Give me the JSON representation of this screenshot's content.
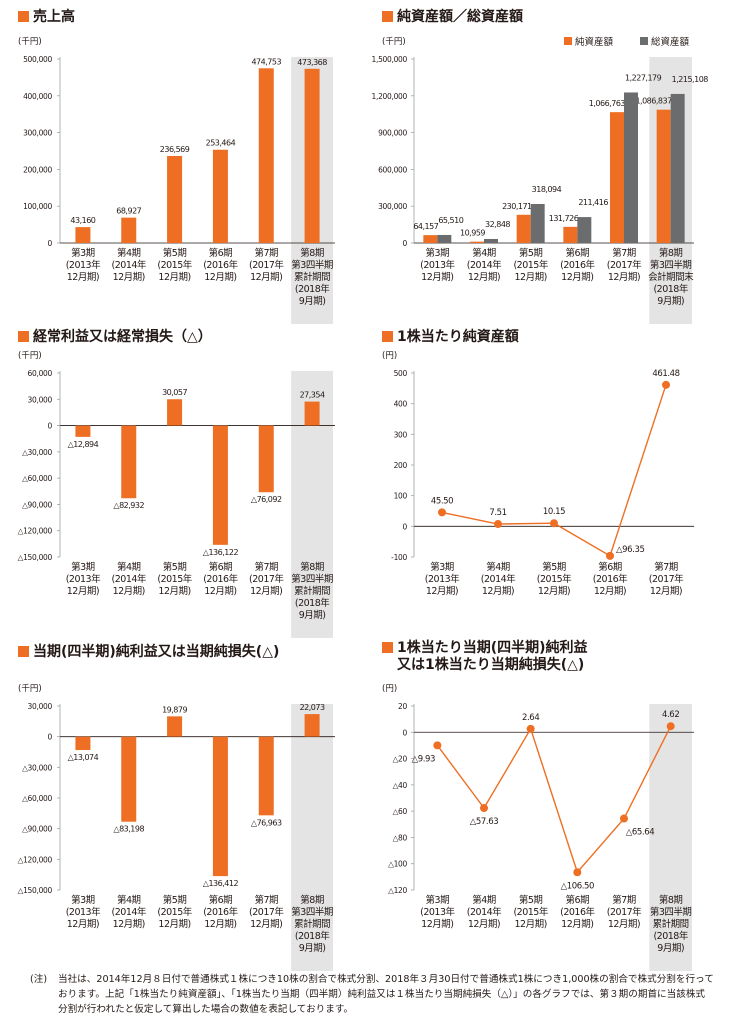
{
  "colors": {
    "orange": "#ee6f23",
    "gray": "#6b6c6e",
    "shade": "#e4e4e4",
    "axis": "#231815"
  },
  "panels": [
    {
      "title_lines": [
        "売上高"
      ],
      "chart_data": {
        "type": "bar",
        "unit": "(千円)",
        "ylim": [
          0,
          500000
        ],
        "yticks": [
          0,
          100000,
          200000,
          300000,
          400000,
          500000
        ],
        "ytick_labels": [
          "0",
          "100,000",
          "200,000",
          "300,000",
          "400,000",
          "500,000"
        ],
        "categories": [
          [
            "第3期",
            "(2013年",
            "12月期)"
          ],
          [
            "第4期",
            "(2014年",
            "12月期)"
          ],
          [
            "第5期",
            "(2015年",
            "12月期)"
          ],
          [
            "第6期",
            "(2016年",
            "12月期)"
          ],
          [
            "第7期",
            "(2017年",
            "12月期)"
          ],
          [
            "第8期",
            "第3四半期",
            "累計期間",
            "(2018年",
            "9月期)"
          ]
        ],
        "highlight_last": true,
        "series": [
          {
            "name": "売上高",
            "color": "#ee6f23",
            "values": [
              43160,
              68927,
              236569,
              253464,
              474753,
              473368
            ],
            "labels": [
              "43,160",
              "68,927",
              "236,569",
              "253,464",
              "474,753",
              "473,368"
            ]
          }
        ]
      }
    },
    {
      "title_lines": [
        "純資産額／総資産額"
      ],
      "chart_data": {
        "type": "bar",
        "unit": "(千円)",
        "ylim": [
          0,
          1500000
        ],
        "yticks": [
          0,
          300000,
          600000,
          900000,
          1200000,
          1500000
        ],
        "ytick_labels": [
          "0",
          "300,000",
          "600,000",
          "900,000",
          "1,200,000",
          "1,500,000"
        ],
        "legend": {
          "position": "top-right",
          "entries": [
            "純資産額",
            "総資産額"
          ]
        },
        "categories": [
          [
            "第3期",
            "(2013年",
            "12月期)"
          ],
          [
            "第4期",
            "(2014年",
            "12月期)"
          ],
          [
            "第5期",
            "(2015年",
            "12月期)"
          ],
          [
            "第6期",
            "(2016年",
            "12月期)"
          ],
          [
            "第7期",
            "(2017年",
            "12月期)"
          ],
          [
            "第8期",
            "第3四半期",
            "会計期間末",
            "(2018年",
            "9月期)"
          ]
        ],
        "highlight_last": true,
        "series": [
          {
            "name": "純資産額",
            "color": "#ee6f23",
            "values": [
              64157,
              10959,
              230171,
              131726,
              1066763,
              1086837
            ],
            "labels": [
              "64,157",
              "10,959",
              "230,171",
              "131,726",
              "1,066,763",
              "1,086,837"
            ]
          },
          {
            "name": "総資産額",
            "color": "#6b6c6e",
            "values": [
              65510,
              32848,
              318094,
              211416,
              1227179,
              1215108
            ],
            "labels": [
              "65,510",
              "32,848",
              "318,094",
              "211,416",
              "1,227,179",
              "1,215,108"
            ]
          }
        ]
      }
    },
    {
      "title_lines": [
        "経常利益又は経常損失（△）"
      ],
      "chart_data": {
        "type": "bar",
        "unit": "(千円)",
        "ylim": [
          -150000,
          60000
        ],
        "yticks": [
          60000,
          30000,
          0,
          -30000,
          -60000,
          -90000,
          -120000,
          -150000
        ],
        "ytick_labels": [
          "60,000",
          "30,000",
          "0",
          "△30,000",
          "△60,000",
          "△90,000",
          "△120,000",
          "△150,000"
        ],
        "categories": [
          [
            "第3期",
            "(2013年",
            "12月期)"
          ],
          [
            "第4期",
            "(2014年",
            "12月期)"
          ],
          [
            "第5期",
            "(2015年",
            "12月期)"
          ],
          [
            "第6期",
            "(2016年",
            "12月期)"
          ],
          [
            "第7期",
            "(2017年",
            "12月期)"
          ],
          [
            "第8期",
            "第3四半期",
            "累計期間",
            "(2018年",
            "9月期)"
          ]
        ],
        "highlight_last": true,
        "series": [
          {
            "name": "経常利益",
            "color": "#ee6f23",
            "values": [
              -12894,
              -82932,
              30057,
              -136122,
              -76092,
              27354
            ],
            "labels": [
              "△12,894",
              "△82,932",
              "30,057",
              "△136,122",
              "△76,092",
              "27,354"
            ]
          }
        ]
      }
    },
    {
      "title_lines": [
        "1株当たり純資産額"
      ],
      "chart_data": {
        "type": "line",
        "unit": "(円)",
        "ylim": [
          -100,
          500
        ],
        "yticks": [
          500,
          400,
          300,
          200,
          100,
          0,
          -100
        ],
        "ytick_labels": [
          "500",
          "400",
          "300",
          "200",
          "100",
          "0",
          "-100"
        ],
        "categories": [
          [
            "第3期",
            "(2013年",
            "12月期)"
          ],
          [
            "第4期",
            "(2014年",
            "12月期)"
          ],
          [
            "第5期",
            "(2015年",
            "12月期)"
          ],
          [
            "第6期",
            "(2016年",
            "12月期)"
          ],
          [
            "第7期",
            "(2017年",
            "12月期)"
          ]
        ],
        "highlight_last": false,
        "series": [
          {
            "name": "1株当たり純資産額",
            "color": "#ee6f23",
            "values": [
              45.5,
              7.51,
              10.15,
              -96.35,
              461.48
            ],
            "labels": [
              "45.50",
              "7.51",
              "10.15",
              "△96.35",
              "461.48"
            ]
          }
        ]
      }
    },
    {
      "title_lines": [
        "当期(四半期)純利益又は当期純損失(△)"
      ],
      "chart_data": {
        "type": "bar",
        "unit": "(千円)",
        "ylim": [
          -150000,
          30000
        ],
        "yticks": [
          30000,
          0,
          -30000,
          -60000,
          -90000,
          -120000,
          -150000
        ],
        "ytick_labels": [
          "30,000",
          "0",
          "△30,000",
          "△60,000",
          "△90,000",
          "△120,000",
          "△150,000"
        ],
        "categories": [
          [
            "第3期",
            "(2013年",
            "12月期)"
          ],
          [
            "第4期",
            "(2014年",
            "12月期)"
          ],
          [
            "第5期",
            "(2015年",
            "12月期)"
          ],
          [
            "第6期",
            "(2016年",
            "12月期)"
          ],
          [
            "第7期",
            "(2017年",
            "12月期)"
          ],
          [
            "第8期",
            "第3四半期",
            "累計期間",
            "(2018年",
            "9月期)"
          ]
        ],
        "highlight_last": true,
        "series": [
          {
            "name": "当期純利益",
            "color": "#ee6f23",
            "values": [
              -13074,
              -83198,
              19879,
              -136412,
              -76963,
              22073
            ],
            "labels": [
              "△13,074",
              "△83,198",
              "19,879",
              "△136,412",
              "△76,963",
              "22,073"
            ]
          }
        ]
      }
    },
    {
      "title_lines": [
        "1株当たり当期(四半期)純利益",
        "又は1株当たり当期純損失(△)"
      ],
      "chart_data": {
        "type": "line",
        "unit": "(円)",
        "ylim": [
          -120,
          20
        ],
        "yticks": [
          20,
          0,
          -20,
          -40,
          -60,
          -80,
          -100,
          -120
        ],
        "ytick_labels": [
          "20",
          "0",
          "△20",
          "△40",
          "△60",
          "△80",
          "△100",
          "△120"
        ],
        "categories": [
          [
            "第3期",
            "(2013年",
            "12月期)"
          ],
          [
            "第4期",
            "(2014年",
            "12月期)"
          ],
          [
            "第5期",
            "(2015年",
            "12月期)"
          ],
          [
            "第6期",
            "(2016年",
            "12月期)"
          ],
          [
            "第7期",
            "(2017年",
            "12月期)"
          ],
          [
            "第8期",
            "第3四半期",
            "累計期間",
            "(2018年",
            "9月期)"
          ]
        ],
        "highlight_last": true,
        "series": [
          {
            "name": "1株当たり純利益",
            "color": "#ee6f23",
            "values": [
              -9.93,
              -57.63,
              2.64,
              -106.5,
              -65.64,
              4.62
            ],
            "labels": [
              "△9.93",
              "△57.63",
              "2.64",
              "△106.50",
              "△65.64",
              "4.62"
            ]
          }
        ]
      }
    }
  ],
  "footnote": {
    "label": "(注)",
    "text": "当社は、2014年12月８日付で普通株式１株につき10株の割合で株式分割、2018年３月30日付で普通株式1株につき1,000株の割合で株式分割を行っております。上記「1株当たり純資産額」、「1株当たり当期（四半期）純利益又は１株当たり当期純損失（△）」の各グラフでは、第３期の期首に当該株式分割が行われたと仮定して算出した場合の数値を表記しております。"
  }
}
